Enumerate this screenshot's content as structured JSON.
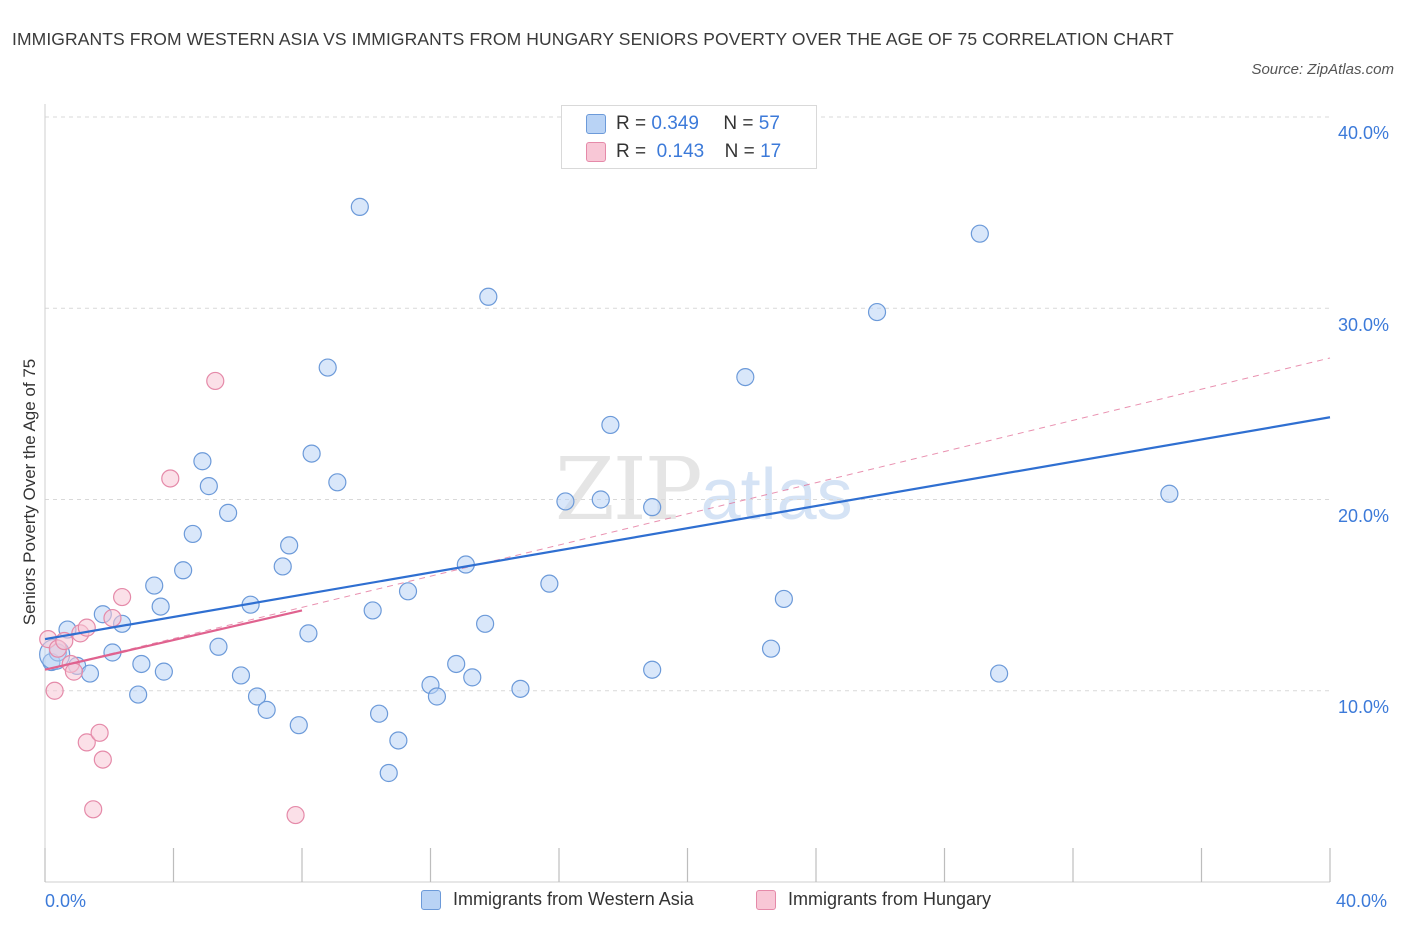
{
  "title": "IMMIGRANTS FROM WESTERN ASIA VS IMMIGRANTS FROM HUNGARY SENIORS POVERTY OVER THE AGE OF 75 CORRELATION CHART",
  "source": "Source: ZipAtlas.com",
  "watermark": {
    "zip": "ZIP",
    "atlas": "atlas"
  },
  "legend": {
    "rows": [
      {
        "r_label": "R =",
        "r_value": "0.349",
        "n_label": "N =",
        "n_value": "57"
      },
      {
        "r_label": "R =",
        "r_value": "0.143",
        "n_label": "N =",
        "n_value": "17"
      }
    ]
  },
  "axes": {
    "x_min_label": "0.0%",
    "x_max_label": "40.0%",
    "y_ticks": [
      "10.0%",
      "20.0%",
      "30.0%",
      "40.0%"
    ]
  },
  "colors": {
    "blue_fill": "#b9d3f5",
    "blue_stroke": "#6c9ad9",
    "blue_line": "#2f6fd1",
    "pink_fill": "#f8c7d6",
    "pink_stroke": "#e58aa9",
    "pink_line": "#e0628f",
    "grid": "#d9d9d9",
    "axis_text": "#3c7ad9"
  },
  "chart_data": {
    "type": "scatter",
    "title": "IMMIGRANTS FROM WESTERN ASIA VS IMMIGRANTS FROM HUNGARY SENIORS POVERTY OVER THE AGE OF 75 CORRELATION CHART",
    "xlabel": "",
    "ylabel": "Seniors Poverty Over the Age of 75",
    "xlim": [
      0,
      40
    ],
    "ylim": [
      0,
      40
    ],
    "series": [
      {
        "name": "Immigrants from Western Asia",
        "color": "#b9d3f5",
        "points": [
          [
            0.2,
            11.5
          ],
          [
            0.4,
            12.0
          ],
          [
            0.7,
            13.2
          ],
          [
            1.0,
            11.3
          ],
          [
            1.4,
            10.9
          ],
          [
            1.8,
            14.0
          ],
          [
            2.1,
            12.0
          ],
          [
            2.4,
            13.5
          ],
          [
            2.9,
            9.8
          ],
          [
            3.0,
            11.4
          ],
          [
            3.7,
            11.0
          ],
          [
            3.4,
            15.5
          ],
          [
            3.6,
            14.4
          ],
          [
            4.3,
            16.3
          ],
          [
            4.6,
            18.2
          ],
          [
            4.9,
            22.0
          ],
          [
            5.1,
            20.7
          ],
          [
            5.4,
            12.3
          ],
          [
            5.7,
            19.3
          ],
          [
            6.1,
            10.8
          ],
          [
            6.4,
            14.5
          ],
          [
            6.6,
            9.7
          ],
          [
            6.9,
            9.0
          ],
          [
            7.4,
            16.5
          ],
          [
            7.6,
            17.6
          ],
          [
            7.9,
            8.2
          ],
          [
            8.2,
            13.0
          ],
          [
            8.3,
            22.4
          ],
          [
            8.8,
            26.9
          ],
          [
            9.1,
            20.9
          ],
          [
            9.8,
            35.3
          ],
          [
            10.2,
            14.2
          ],
          [
            10.4,
            8.8
          ],
          [
            10.7,
            5.7
          ],
          [
            11.0,
            7.4
          ],
          [
            11.3,
            15.2
          ],
          [
            12.0,
            10.3
          ],
          [
            12.2,
            9.7
          ],
          [
            12.8,
            11.4
          ],
          [
            13.1,
            16.6
          ],
          [
            13.3,
            10.7
          ],
          [
            13.7,
            13.5
          ],
          [
            13.8,
            30.6
          ],
          [
            14.8,
            10.1
          ],
          [
            15.7,
            15.6
          ],
          [
            16.2,
            19.9
          ],
          [
            17.3,
            20.0
          ],
          [
            17.6,
            23.9
          ],
          [
            18.9,
            19.6
          ],
          [
            18.9,
            11.1
          ],
          [
            21.8,
            26.4
          ],
          [
            22.6,
            12.2
          ],
          [
            23.0,
            14.8
          ],
          [
            25.9,
            29.8
          ],
          [
            29.1,
            33.9
          ],
          [
            29.7,
            10.9
          ],
          [
            35.0,
            20.3
          ]
        ],
        "trend": {
          "x": [
            0,
            40
          ],
          "y": [
            12.7,
            24.3
          ]
        }
      },
      {
        "name": "Immigrants from Hungary",
        "color": "#f8c7d6",
        "points": [
          [
            0.1,
            12.7
          ],
          [
            0.3,
            10.0
          ],
          [
            0.4,
            12.2
          ],
          [
            0.6,
            12.6
          ],
          [
            0.8,
            11.4
          ],
          [
            0.9,
            11.0
          ],
          [
            1.1,
            13.0
          ],
          [
            1.3,
            13.3
          ],
          [
            1.3,
            7.3
          ],
          [
            1.5,
            3.8
          ],
          [
            1.7,
            7.8
          ],
          [
            1.8,
            6.4
          ],
          [
            2.1,
            13.8
          ],
          [
            2.4,
            14.9
          ],
          [
            3.9,
            21.1
          ],
          [
            5.3,
            26.2
          ],
          [
            7.8,
            3.5
          ]
        ],
        "trend": {
          "x": [
            0,
            8
          ],
          "y": [
            11.1,
            14.2
          ]
        },
        "trend_extended": {
          "x": [
            0,
            40
          ],
          "y": [
            11.1,
            27.4
          ]
        }
      }
    ]
  }
}
